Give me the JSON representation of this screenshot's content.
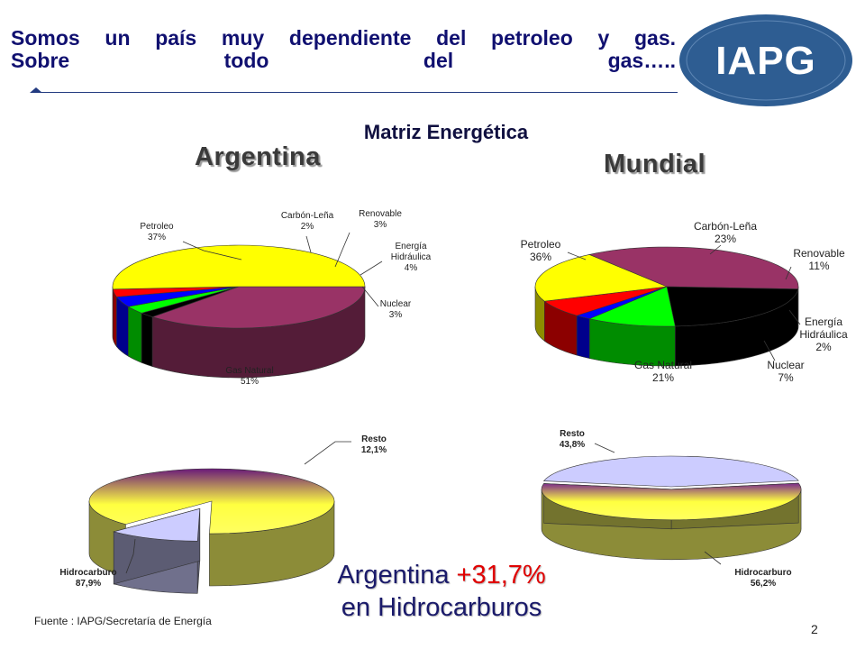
{
  "slide": {
    "title_line1": "Somos un país muy dependiente del petroleo y gas.",
    "title_line2": "Sobre todo del gas…..",
    "logo_text": "IAPG",
    "subtitle": "Matriz Energética",
    "region_argentina": "Argentina",
    "region_mundial": "Mundial",
    "bottom_line1_prefix": "Argentina ",
    "bottom_line1_pct": "+31,7%",
    "bottom_line2": "en Hidrocarburos",
    "source": "Fuente : IAPG/Secretaría de Energía",
    "page_number": "2"
  },
  "labels": {
    "arg": {
      "petroleo": [
        "Petroleo",
        "37%"
      ],
      "carbon": [
        "Carbón-Leña",
        "2%"
      ],
      "renovable": [
        "Renovable",
        "3%"
      ],
      "energia": [
        "Energía",
        "Hidráulica",
        "4%"
      ],
      "nuclear": [
        "Nuclear",
        "3%"
      ],
      "gas": [
        "Gas Natural",
        "51%"
      ]
    },
    "world": {
      "petroleo": [
        "Petroleo",
        "36%"
      ],
      "carbon": [
        "Carbón-Leña",
        "23%"
      ],
      "renovable": [
        "Renovable",
        "11%"
      ],
      "energia": [
        "Energía",
        "Hidráulica",
        "2%"
      ],
      "nuclear": [
        "Nuclear",
        "7%"
      ],
      "gas": [
        "Gas Natural",
        "21%"
      ]
    },
    "arg_h": {
      "resto": [
        "Resto",
        "12,1%"
      ],
      "hidro": [
        "Hidrocarburo",
        "87,9%"
      ]
    },
    "world_h": {
      "resto": [
        "Resto",
        "43,8%"
      ],
      "hidro": [
        "Hidrocarburo",
        "56,2%"
      ]
    }
  },
  "chart_data": [
    {
      "type": "pie",
      "title": "Argentina",
      "categories": [
        "Petroleo",
        "Carbón-Leña",
        "Renovable",
        "Energía Hidráulica",
        "Nuclear",
        "Gas Natural"
      ],
      "values": [
        37,
        2,
        3,
        4,
        3,
        51
      ],
      "colors": [
        "#993366",
        "#000000",
        "#00ff00",
        "#0000ff",
        "#ff0000",
        "#ffff00"
      ]
    },
    {
      "type": "pie",
      "title": "Mundial",
      "categories": [
        "Petroleo",
        "Carbón-Leña",
        "Renovable",
        "Energía Hidráulica",
        "Nuclear",
        "Gas Natural"
      ],
      "values": [
        36,
        23,
        11,
        2,
        7,
        21
      ],
      "colors": [
        "#993366",
        "#000000",
        "#00ff00",
        "#0000ff",
        "#ff0000",
        "#ffff00"
      ]
    },
    {
      "type": "pie",
      "title": "Argentina",
      "categories": [
        "Hidrocarburo",
        "Resto"
      ],
      "values": [
        87.9,
        12.1
      ],
      "colors": [
        "#ffff66",
        "#ccccff"
      ]
    },
    {
      "type": "pie",
      "title": "Mundial",
      "categories": [
        "Hidrocarburo",
        "Resto"
      ],
      "values": [
        56.2,
        43.8
      ],
      "colors": [
        "#ffff66",
        "#ccccff"
      ]
    }
  ]
}
